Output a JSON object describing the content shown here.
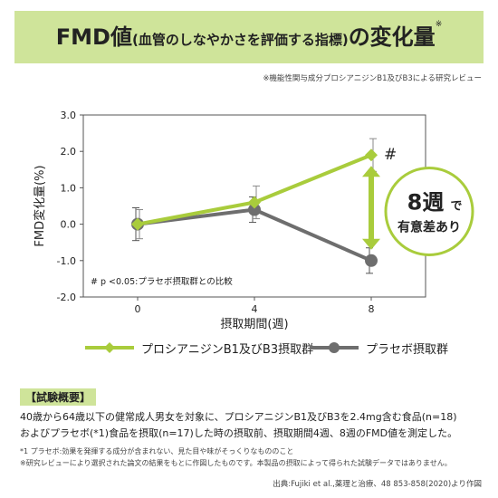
{
  "title": {
    "part1": "FMD値",
    "part2": "(血管のしなやかさを評価する指標)",
    "part3": "の変化量",
    "mark": "※"
  },
  "source_note": "※機能性関与成分プロシアニジンB1及びB3による研究レビュー",
  "chart_data": {
    "type": "line",
    "x": [
      0,
      4,
      8
    ],
    "xlabel": "摂取期間(週)",
    "ylabel": "FMD変化量(%)",
    "ylim": [
      -2.0,
      3.0
    ],
    "yticks": [
      "3.0",
      "2.0",
      "1.0",
      "0.0",
      "-1.0",
      "-2.0"
    ],
    "xticks": [
      "0",
      "4",
      "8"
    ],
    "series": [
      {
        "name": "プロシアニジンB1及びB3摂取群",
        "color": "#a9cc3c",
        "values": [
          0.0,
          0.6,
          1.9
        ],
        "err_low": [
          0.4,
          0.45,
          0.45
        ],
        "err_high": [
          0.4,
          0.45,
          0.45
        ]
      },
      {
        "name": "プラセボ摂取群",
        "color": "#6e6e6e",
        "values": [
          0.0,
          0.4,
          -1.0
        ],
        "err_low": [
          0.45,
          0.35,
          0.35
        ],
        "err_high": [
          0.45,
          0.35,
          0.35
        ]
      }
    ],
    "significance_mark": "#",
    "footnote": "# p <0.05:プラセボ摂取群との比較",
    "badge_big": "8週",
    "badge_de": "で",
    "badge_small": "有意差あり",
    "grid": false,
    "legend_position": "bottom",
    "colors": {
      "highlight": "#a9cc3c",
      "badge_circle": "#ffffff"
    }
  },
  "summary": {
    "heading": "【試験概要】",
    "line1": "40歳から64歳以下の健常成人男女を対象に、プロシアニジンB1及びB3を2.4mg含む食品(n=18)",
    "line2": "およびプラセボ(*1)食品を摂取(n=17)した時の摂取前、摂取期間4週、8週のFMD値を測定した。",
    "note1": "*1 プラセボ:効果を発揮する成分が含まれない、見た目や味がそっくりなもののこと",
    "note2": "※研究レビューにより選択された論文の結果をもとに作図したものです。本製品の摂取によって得られた試験データではありません。"
  },
  "citation": "出典:Fujiki et al.,薬理と治療、48 853-858(2020)より作図"
}
